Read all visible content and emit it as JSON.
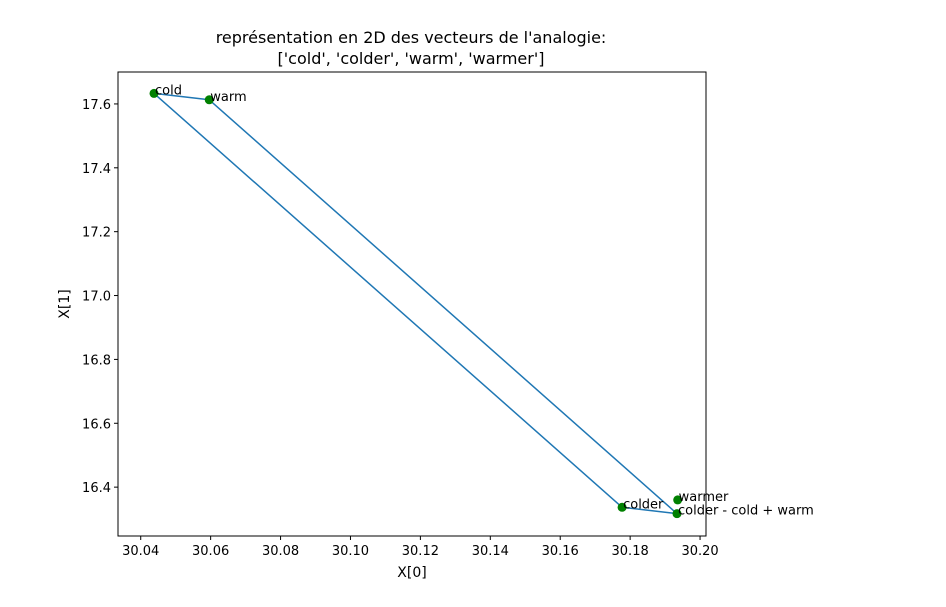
{
  "chart_data": {
    "type": "scatter",
    "title_line1": "représentation en 2D des vecteurs de l'analogie:",
    "title_line2": "['cold', 'colder', 'warm', 'warmer']",
    "xlabel": "X[0]",
    "ylabel": "X[1]",
    "xlim": [
      30.0335,
      30.2017
    ],
    "ylim": [
      16.247,
      17.7
    ],
    "grid": false,
    "x_ticks": [
      "30.04",
      "30.06",
      "30.08",
      "30.10",
      "30.12",
      "30.14",
      "30.16",
      "30.18",
      "30.20"
    ],
    "x_tick_values": [
      30.04,
      30.06,
      30.08,
      30.1,
      30.12,
      30.14,
      30.16,
      30.18,
      30.2
    ],
    "y_ticks": [
      "16.4",
      "16.6",
      "16.8",
      "17.0",
      "17.2",
      "17.4",
      "17.6"
    ],
    "y_tick_values": [
      16.4,
      16.6,
      16.8,
      17.0,
      17.2,
      17.4,
      17.6
    ],
    "points": [
      {
        "label": "cold",
        "x": 30.0438,
        "y": 17.633
      },
      {
        "label": "warm",
        "x": 30.0596,
        "y": 17.613
      },
      {
        "label": "colder",
        "x": 30.1777,
        "y": 16.337
      },
      {
        "label": "warmer",
        "x": 30.1936,
        "y": 16.36
      },
      {
        "label": "colder - cold + warm",
        "x": 30.1934,
        "y": 16.317
      }
    ],
    "path_order": [
      "cold",
      "warm",
      "colder - cold + warm",
      "colder",
      "cold"
    ],
    "line_color": "#1f77b4",
    "marker_color": "#008000"
  }
}
